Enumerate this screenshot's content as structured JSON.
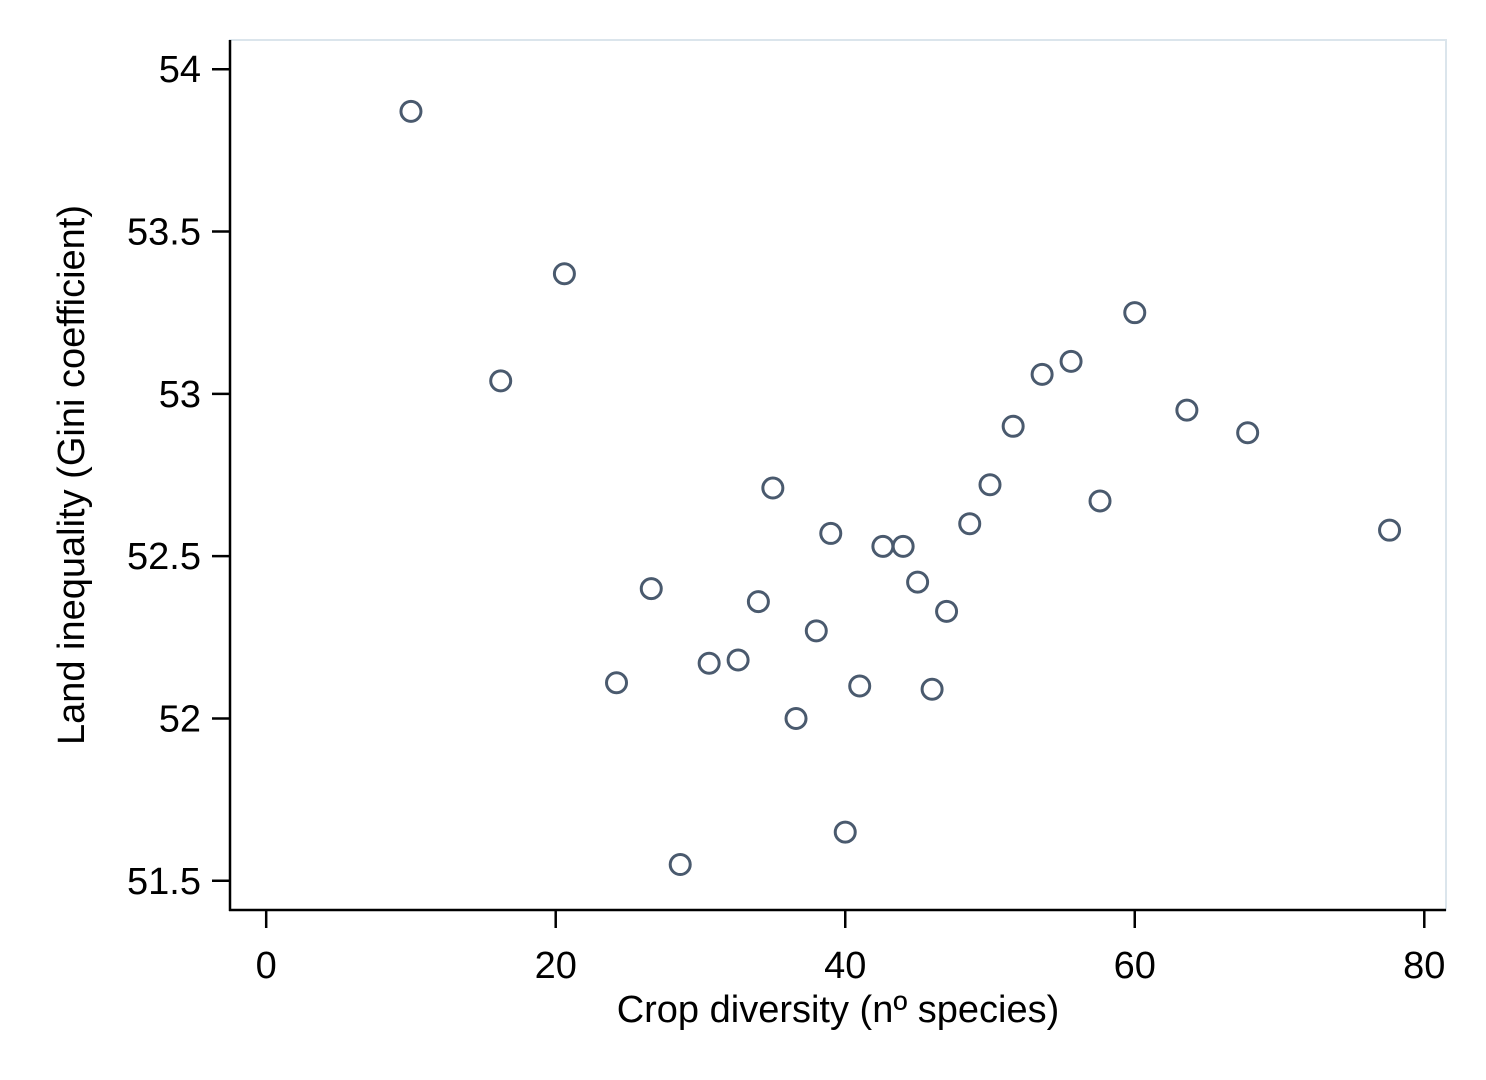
{
  "chart_data": {
    "type": "scatter",
    "title": "",
    "xlabel": "Crop diversity (nº species)",
    "ylabel": "Land inequality (Gini coefficient)",
    "xlim": [
      -2.5,
      81.5
    ],
    "ylim": [
      51.41,
      54.09
    ],
    "x_ticks": [
      0,
      20,
      40,
      60,
      80
    ],
    "y_ticks": [
      51.5,
      52,
      52.5,
      53,
      53.5,
      54
    ],
    "x_tick_labels": [
      "0",
      "20",
      "40",
      "60",
      "80"
    ],
    "y_tick_labels": [
      "51.5",
      "52",
      "52.5",
      "53",
      "53.5",
      "54"
    ],
    "grid": false,
    "marker": "hollow-circle",
    "marker_color": "#4a5a6e",
    "points": [
      {
        "x": 10.0,
        "y": 53.87
      },
      {
        "x": 16.2,
        "y": 53.04
      },
      {
        "x": 20.6,
        "y": 53.37
      },
      {
        "x": 24.2,
        "y": 52.11
      },
      {
        "x": 26.6,
        "y": 52.4
      },
      {
        "x": 28.6,
        "y": 51.55
      },
      {
        "x": 30.6,
        "y": 52.17
      },
      {
        "x": 32.6,
        "y": 52.18
      },
      {
        "x": 34.0,
        "y": 52.36
      },
      {
        "x": 35.0,
        "y": 52.71
      },
      {
        "x": 36.6,
        "y": 52.0
      },
      {
        "x": 38.0,
        "y": 52.27
      },
      {
        "x": 39.0,
        "y": 52.57
      },
      {
        "x": 40.0,
        "y": 51.65
      },
      {
        "x": 41.0,
        "y": 52.1
      },
      {
        "x": 42.6,
        "y": 52.53
      },
      {
        "x": 44.0,
        "y": 52.53
      },
      {
        "x": 45.0,
        "y": 52.42
      },
      {
        "x": 46.0,
        "y": 52.09
      },
      {
        "x": 47.0,
        "y": 52.33
      },
      {
        "x": 48.6,
        "y": 52.6
      },
      {
        "x": 50.0,
        "y": 52.72
      },
      {
        "x": 51.6,
        "y": 52.9
      },
      {
        "x": 53.6,
        "y": 53.06
      },
      {
        "x": 55.6,
        "y": 53.1
      },
      {
        "x": 57.6,
        "y": 52.67
      },
      {
        "x": 60.0,
        "y": 53.25
      },
      {
        "x": 63.6,
        "y": 52.95
      },
      {
        "x": 67.8,
        "y": 52.88
      },
      {
        "x": 77.6,
        "y": 52.58
      }
    ]
  }
}
